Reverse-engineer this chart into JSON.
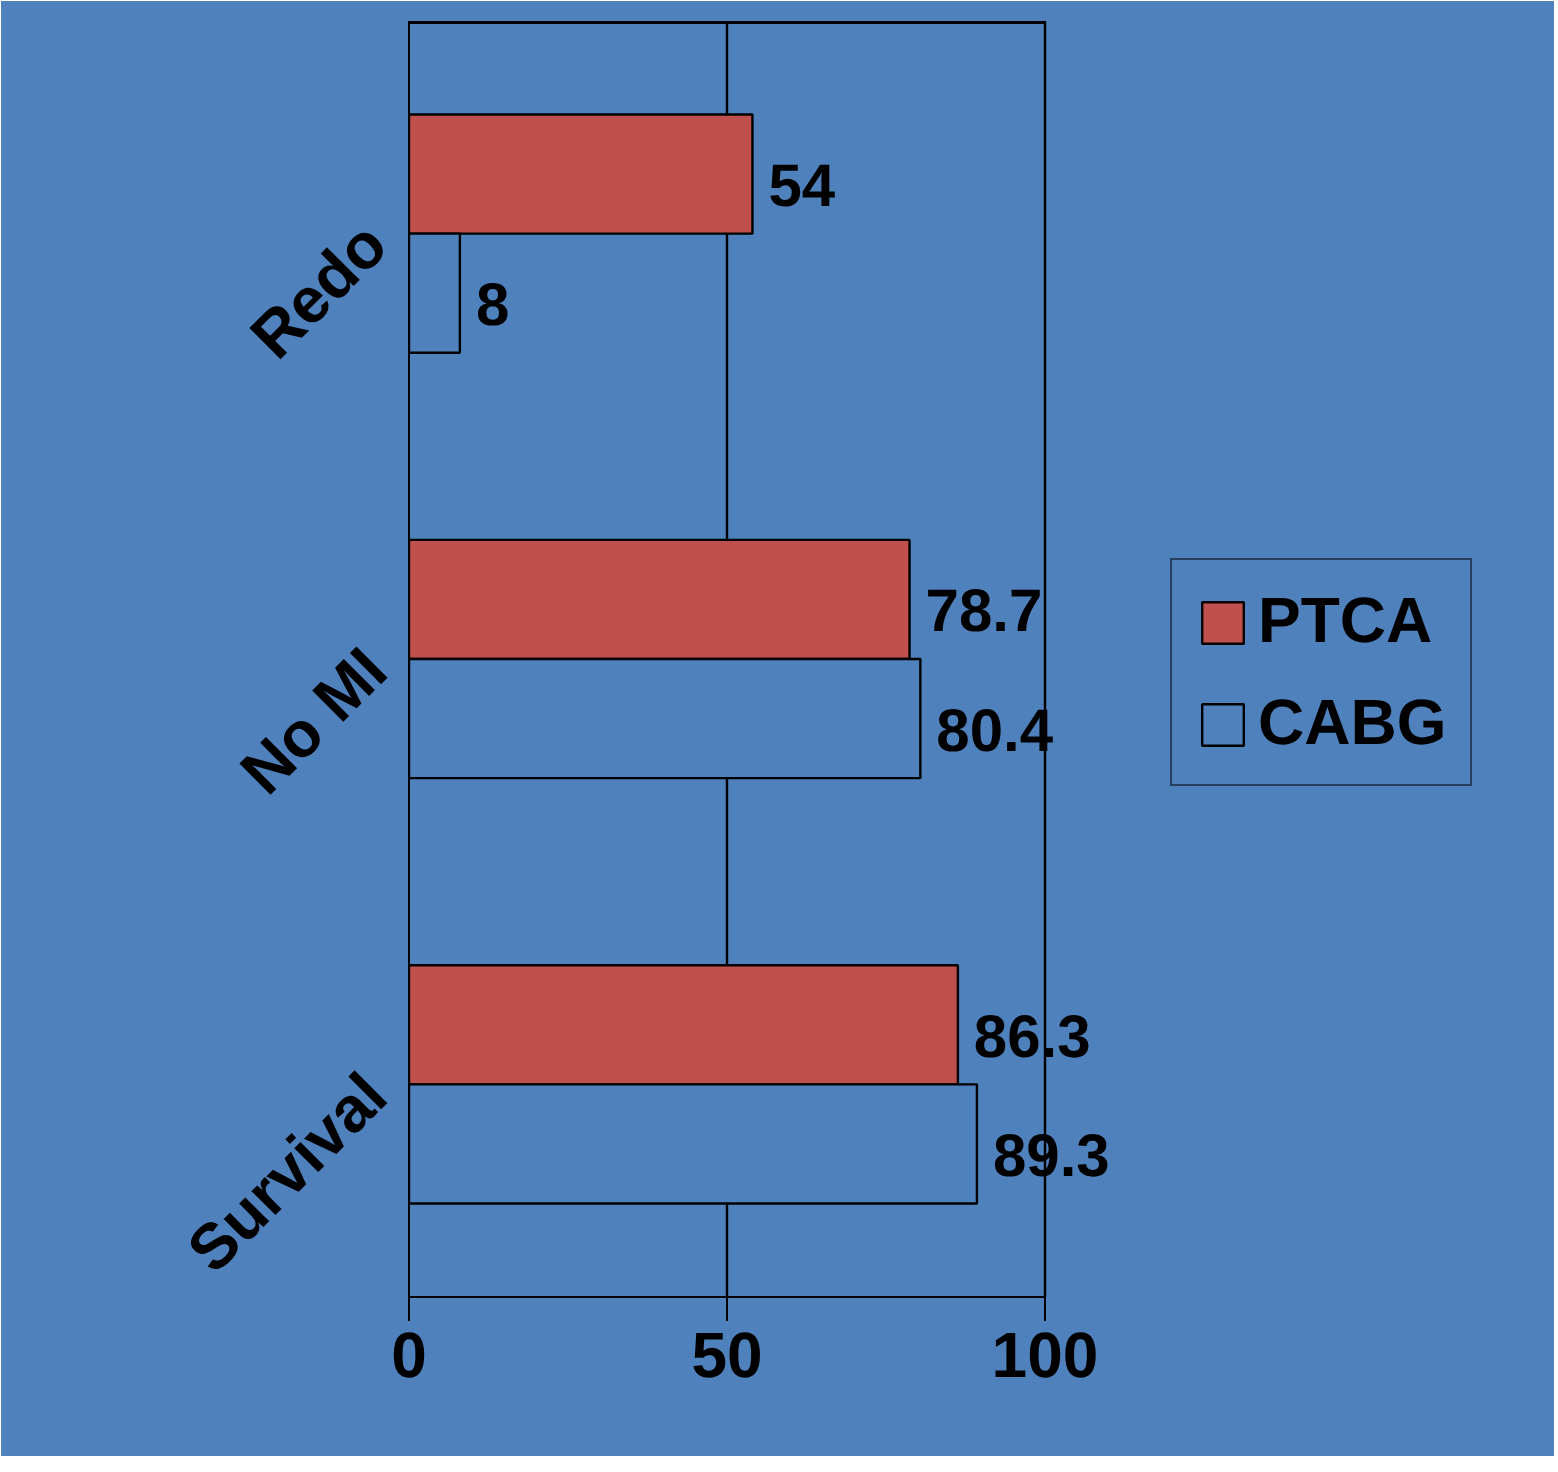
{
  "chart_data": {
    "type": "bar",
    "orientation": "horizontal",
    "categories": [
      "Redo",
      "No MI",
      "Survival"
    ],
    "series": [
      {
        "name": "PTCA",
        "color": "#c0504d",
        "values": [
          54,
          78.7,
          86.3
        ]
      },
      {
        "name": "CABG",
        "color": "#4f81bd",
        "values": [
          8,
          80.4,
          89.3
        ]
      }
    ],
    "xlim": [
      0,
      100
    ],
    "xticks": [
      0,
      50,
      100
    ],
    "grid": "x",
    "legend": "right",
    "data_labels": true
  }
}
